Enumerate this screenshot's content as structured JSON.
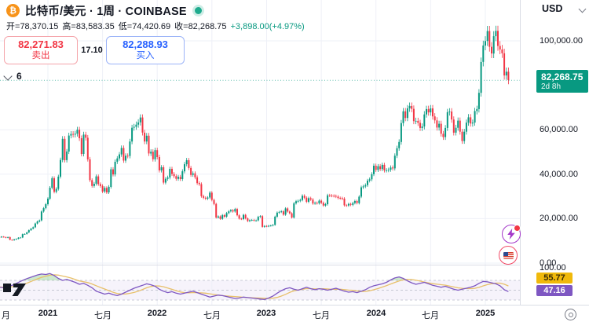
{
  "header": {
    "symbol": "比特币/美元 · 1周 · COINBASE",
    "bitcoin_glyph": "₿",
    "market_status_color": "#1fab8e",
    "ohlc": [
      {
        "label": "开=",
        "value": "78,370.15"
      },
      {
        "label": "高=",
        "value": "83,583.35"
      },
      {
        "label": "低=",
        "value": "74,420.69"
      },
      {
        "label": "收=",
        "value": "82,268.75"
      }
    ],
    "change": "+3,898.00(+4.97%)",
    "sell": {
      "price": "82,271.83",
      "label": "卖出"
    },
    "spread": "17.10",
    "buy": {
      "price": "82,288.93",
      "label": "买入"
    },
    "collapse_count": "6"
  },
  "price_axis": {
    "currency": "USD",
    "ticks": [
      {
        "text": "100,000.00",
        "value": 100000
      },
      {
        "text": "60,000.00",
        "value": 60000
      },
      {
        "text": "40,000.00",
        "value": 40000
      },
      {
        "text": "20,000.00",
        "value": 20000
      },
      {
        "text": "0.00",
        "value": 0
      }
    ],
    "badge": {
      "price": "82,268.75",
      "countdown": "2d 8h",
      "color": "#089981"
    }
  },
  "indicator_axis": {
    "top_text": "100.00",
    "ma_value": "55.77",
    "rsi_value": "47.16"
  },
  "time_axis": {
    "ticks": [
      {
        "label": "月",
        "i": 0,
        "year": false
      },
      {
        "label": "2021",
        "i": 25,
        "year": true
      },
      {
        "label": "七月",
        "i": 51,
        "year": false
      },
      {
        "label": "2022",
        "i": 77,
        "year": true
      },
      {
        "label": "七月",
        "i": 103,
        "year": false
      },
      {
        "label": "2023",
        "i": 129,
        "year": true
      },
      {
        "label": "七月",
        "i": 155,
        "year": false
      },
      {
        "label": "2024",
        "i": 181,
        "year": true
      },
      {
        "label": "七月",
        "i": 207,
        "year": false
      },
      {
        "label": "2025",
        "i": 233,
        "year": true
      }
    ]
  },
  "chart_data": {
    "type": "candlestick",
    "title": "比特币/美元 1周 COINBASE (BTC/USD weekly)",
    "unit": "USD thousands",
    "ylim_k": [
      0,
      119
    ],
    "price_gridlines_k": [
      0,
      20,
      40,
      60,
      100
    ],
    "last_price_k": 82.26875,
    "colors": {
      "up": "#089981",
      "down": "#f23645"
    },
    "weekly_closes_k": [
      11.1,
      11.8,
      11.6,
      11.9,
      11.7,
      11.4,
      11.7,
      10.5,
      10.3,
      10.7,
      10.9,
      11.4,
      11.5,
      13.0,
      13.1,
      13.8,
      14.8,
      15.5,
      16.1,
      17.8,
      18.7,
      19.2,
      23.2,
      24.7,
      26.5,
      29.0,
      33.9,
      38.2,
      32.1,
      33.4,
      38.9,
      46.4,
      55.9,
      46.3,
      50.2,
      57.4,
      58.1,
      57.8,
      58.2,
      60.0,
      56.2,
      49.1,
      57.8,
      56.4,
      46.7,
      37.3,
      34.7,
      35.7,
      39.0,
      35.5,
      34.7,
      32.2,
      33.8,
      31.8,
      34.3,
      42.2,
      39.9,
      45.6,
      47.1,
      48.9,
      51.8,
      46.1,
      48.3,
      48.2,
      54.7,
      60.9,
      61.3,
      62.3,
      63.3,
      65.5,
      58.7,
      54.7,
      57.3,
      49.3,
      50.1,
      46.7,
      50.8,
      47.7,
      41.7,
      43.1,
      36.2,
      37.9,
      38.5,
      42.4,
      40.1,
      39.1,
      37.9,
      38.8,
      37.8,
      41.3,
      44.5,
      46.3,
      42.8,
      39.7,
      40.4,
      38.6,
      36.0,
      35.5,
      30.1,
      29.4,
      29.0,
      29.5,
      31.7,
      28.4,
      26.6,
      20.5,
      21.0,
      19.9,
      21.6,
      20.9,
      22.5,
      23.3,
      23.8,
      23.2,
      24.3,
      21.5,
      20.0,
      19.8,
      21.7,
      20.1,
      18.9,
      19.3,
      19.4,
      19.1,
      19.2,
      20.8,
      21.1,
      16.3,
      16.7,
      16.5,
      16.8,
      16.9,
      17.2,
      20.9,
      22.7,
      23.0,
      23.3,
      21.8,
      24.6,
      23.2,
      22.4,
      20.5,
      26.9,
      27.8,
      28.0,
      28.4,
      30.3,
      29.4,
      27.6,
      29.2,
      28.6,
      26.8,
      27.1,
      26.9,
      28.1,
      27.1,
      25.9,
      26.5,
      30.5,
      30.4,
      30.3,
      30.2,
      29.9,
      29.3,
      29.2,
      29.0,
      26.0,
      25.9,
      26.6,
      26.2,
      27.0,
      27.9,
      27.0,
      29.9,
      34.1,
      34.5,
      35.1,
      37.1,
      37.7,
      40.0,
      43.8,
      41.9,
      43.6,
      42.3,
      44.2,
      41.7,
      41.8,
      42.0,
      43.0,
      42.6,
      48.3,
      51.7,
      54.5,
      63.0,
      68.3,
      65.3,
      69.6,
      70.7,
      69.4,
      63.9,
      64.0,
      63.1,
      60.8,
      61.5,
      66.9,
      69.3,
      67.8,
      69.6,
      66.0,
      64.2,
      61.0,
      62.7,
      58.2,
      56.7,
      60.8,
      67.9,
      68.2,
      64.6,
      58.7,
      60.9,
      64.1,
      59.1,
      54.9,
      59.1,
      63.2,
      65.6,
      62.8,
      63.2,
      68.4,
      69.3,
      76.6,
      90.5,
      97.9,
      99.9,
      104.4,
      97.3,
      94.3,
      102.1,
      104.5,
      97.7,
      96.1,
      94.4,
      84.4,
      86.1,
      82.3
    ],
    "rsi_panel": {
      "name": "RSI (purple) with RSI-based MA (yellow)",
      "index_step": 2,
      "bands": [
        70,
        50,
        30
      ],
      "scale": [
        0,
        100
      ],
      "last_rsi": 47.16,
      "last_ma": 55.77,
      "colors": {
        "rsi": "#7e57c2",
        "ma": "#e8c06a",
        "band_fill": "rgba(126,87,194,0.07)",
        "overbought_fill": "rgba(76,175,80,0.28)"
      },
      "values": [
        57,
        56,
        55,
        57,
        60,
        64,
        68,
        72,
        75,
        78,
        81,
        83,
        82,
        84,
        80,
        74,
        70,
        72,
        69,
        66,
        62,
        64,
        60,
        55,
        48,
        45,
        42,
        44,
        41,
        39,
        42,
        46,
        50,
        54,
        57,
        60,
        63,
        61,
        58,
        52,
        48,
        45,
        47,
        44,
        42,
        44,
        46,
        48,
        45,
        42,
        39,
        36,
        38,
        40,
        39,
        37,
        35,
        33,
        34,
        36,
        35,
        34,
        33,
        32,
        31,
        34,
        38,
        44,
        49,
        53,
        55,
        52,
        50,
        53,
        56,
        53,
        51,
        53,
        52,
        50,
        52,
        54,
        51,
        48,
        46,
        47,
        45,
        48,
        51,
        56,
        59,
        61,
        63,
        66,
        71,
        75,
        77,
        74,
        69,
        65,
        62,
        64,
        66,
        63,
        60,
        58,
        56,
        58,
        55,
        52,
        50,
        52,
        54,
        56,
        59,
        64,
        68,
        67,
        65,
        63,
        59,
        51,
        47.2
      ]
    }
  },
  "icons": [
    "bitcoin-icon",
    "market-status-dot",
    "chevron-down-icon",
    "usd-chevron-icon",
    "spark-lightning-icon",
    "us-flag-icon",
    "settings-gear-icon",
    "tradingview-logo"
  ]
}
